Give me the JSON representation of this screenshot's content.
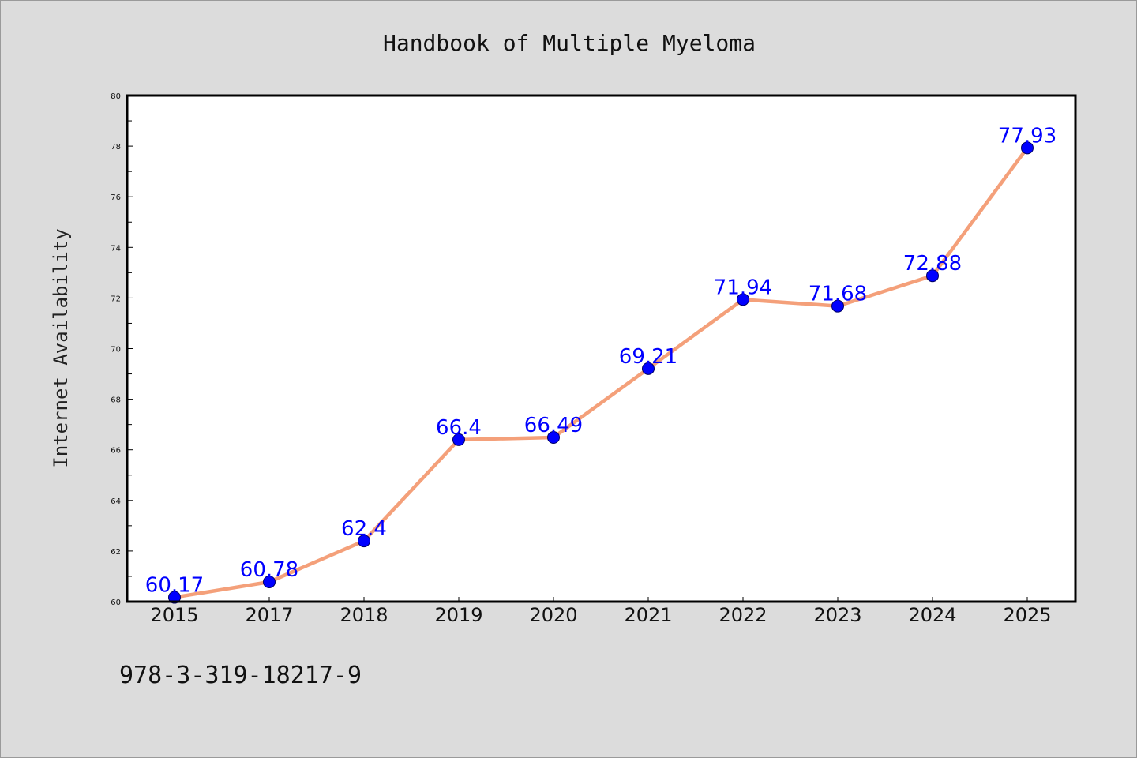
{
  "chart_data": {
    "type": "line",
    "title": "Handbook of Multiple Myeloma",
    "ylabel": "Internet Availability",
    "xlabel": "",
    "categories": [
      "2015",
      "2017",
      "2018",
      "2019",
      "2020",
      "2021",
      "2022",
      "2023",
      "2024",
      "2025"
    ],
    "values": [
      60.17,
      60.78,
      62.4,
      66.4,
      66.49,
      69.21,
      71.94,
      71.68,
      72.88,
      77.93
    ],
    "data_labels": [
      "60.17",
      "60.78",
      "62.4",
      "66.4",
      "66.49",
      "69.21",
      "71.94",
      "71.68",
      "72.88",
      "77.93"
    ],
    "ylim": [
      60,
      80
    ],
    "yticks": [
      60,
      62,
      64,
      66,
      68,
      70,
      72,
      74,
      76,
      78,
      80
    ],
    "grid": false,
    "legend": "none",
    "colors": {
      "line": "#f4a07a",
      "marker": "#0000ff",
      "label": "#0000ff",
      "background": "#dcdcdc",
      "plot_background": "#ffffff"
    }
  },
  "footer": {
    "isbn": "978-3-319-18217-9"
  }
}
